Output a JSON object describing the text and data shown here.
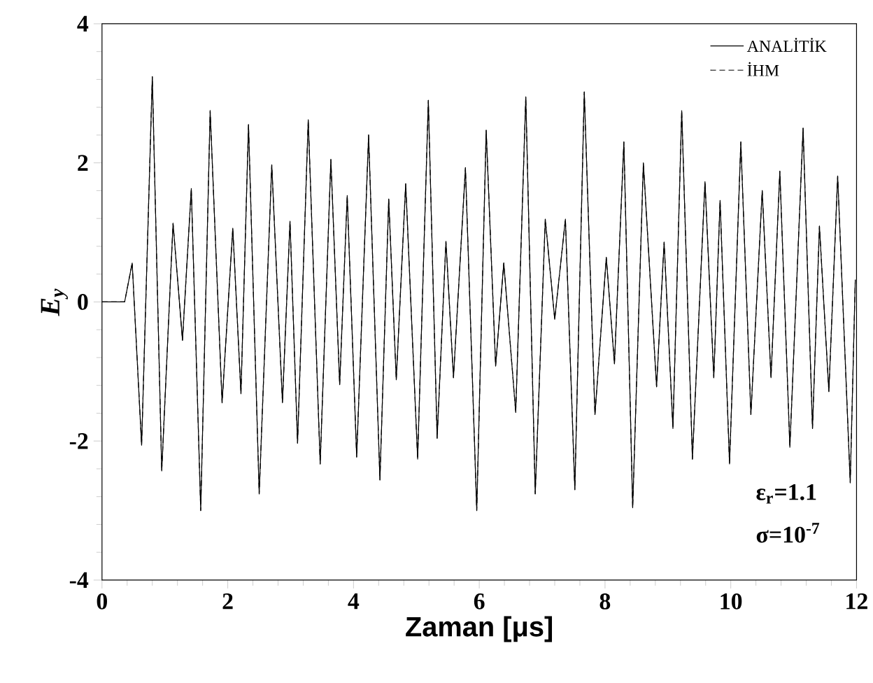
{
  "chart_data": {
    "type": "line",
    "xlabel": "Zaman [μs]",
    "ylabel": "E$_{y}$",
    "x": [
      0,
      0.36,
      0.48,
      0.63,
      0.8,
      0.95,
      1.13,
      1.28,
      1.42,
      1.57,
      1.72,
      1.91,
      2.08,
      2.21,
      2.33,
      2.5,
      2.7,
      2.87,
      2.99,
      3.11,
      3.28,
      3.47,
      3.64,
      3.78,
      3.9,
      4.05,
      4.24,
      4.42,
      4.56,
      4.68,
      4.83,
      5.02,
      5.19,
      5.33,
      5.47,
      5.59,
      5.78,
      5.96,
      6.11,
      6.26,
      6.39,
      6.58,
      6.74,
      6.89,
      7.05,
      7.2,
      7.37,
      7.52,
      7.67,
      7.84,
      8.02,
      8.15,
      8.3,
      8.44,
      8.61,
      8.82,
      8.94,
      9.08,
      9.22,
      9.39,
      9.59,
      9.73,
      9.83,
      9.98,
      10.16,
      10.32,
      10.5,
      10.64,
      10.78,
      10.94,
      11.15,
      11.3,
      11.41,
      11.56,
      11.7,
      11.9,
      11.98
    ],
    "series": [
      {
        "name": "ANALİTİK",
        "color": "#000000",
        "line_style": "solid",
        "values": [
          0,
          0,
          0.56,
          -2.06,
          3.24,
          -2.43,
          1.13,
          -0.55,
          1.63,
          -3.0,
          2.75,
          -1.45,
          1.06,
          -1.32,
          2.55,
          -2.76,
          1.97,
          -1.45,
          1.16,
          -2.03,
          2.62,
          -2.33,
          2.05,
          -1.19,
          1.53,
          -2.23,
          2.4,
          -2.56,
          1.48,
          -1.12,
          1.7,
          -2.26,
          2.9,
          -1.96,
          0.87,
          -1.09,
          1.93,
          -3.0,
          2.47,
          -0.92,
          0.56,
          -1.59,
          2.95,
          -2.76,
          1.19,
          -0.25,
          1.19,
          -2.7,
          3.02,
          -1.62,
          0.64,
          -0.89,
          2.3,
          -2.96,
          2.0,
          -1.22,
          0.86,
          -1.82,
          2.75,
          -2.26,
          1.73,
          -1.09,
          1.46,
          -2.33,
          2.3,
          -1.62,
          1.6,
          -1.09,
          1.88,
          -2.09,
          2.5,
          -1.82,
          1.09,
          -1.29,
          1.81,
          -2.6,
          0.32
        ]
      },
      {
        "name": "İHM",
        "color": "#000000",
        "line_style": "dashed",
        "values": [
          0,
          0,
          0.56,
          -2.06,
          3.24,
          -2.43,
          1.13,
          -0.55,
          1.63,
          -3.0,
          2.75,
          -1.45,
          1.06,
          -1.32,
          2.55,
          -2.76,
          1.97,
          -1.45,
          1.16,
          -2.03,
          2.62,
          -2.33,
          2.05,
          -1.19,
          1.53,
          -2.23,
          2.4,
          -2.56,
          1.48,
          -1.12,
          1.7,
          -2.26,
          2.9,
          -1.96,
          0.87,
          -1.09,
          1.93,
          -3.0,
          2.47,
          -0.92,
          0.56,
          -1.59,
          2.95,
          -2.76,
          1.19,
          -0.25,
          1.19,
          -2.7,
          3.02,
          -1.62,
          0.64,
          -0.89,
          2.3,
          -2.96,
          2.0,
          -1.22,
          0.86,
          -1.82,
          2.75,
          -2.26,
          1.73,
          -1.09,
          1.46,
          -2.33,
          2.3,
          -1.62,
          1.6,
          -1.09,
          1.88,
          -2.09,
          2.5,
          -1.82,
          1.09,
          -1.29,
          1.81,
          -2.6,
          0.32
        ]
      }
    ],
    "xlim": [
      0,
      12
    ],
    "ylim": [
      -4,
      4
    ],
    "xticks": [
      0,
      2,
      4,
      6,
      8,
      10,
      12
    ],
    "yticks": [
      -4,
      -2,
      0,
      2,
      4
    ],
    "legend": "top right",
    "annotations": [
      "ε$_{r}$=1.1",
      "σ=10$^{-7}$"
    ]
  }
}
